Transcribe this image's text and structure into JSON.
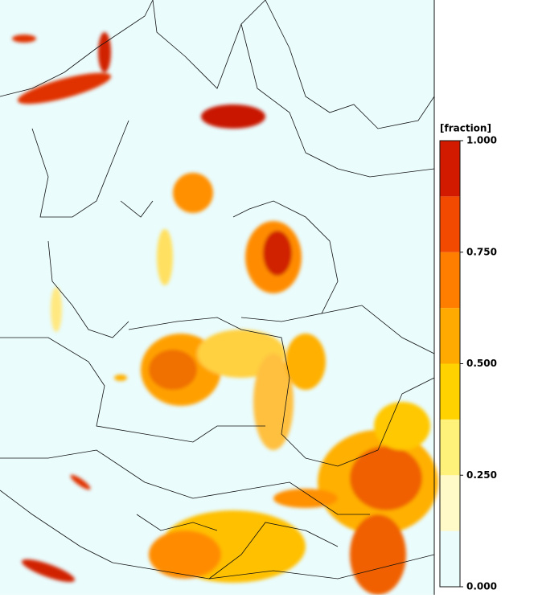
{
  "colorbar": {
    "label": "[fraction]",
    "ticks": [
      {
        "value": 0,
        "label": "0.000"
      },
      {
        "value": 0.25,
        "label": "0.250"
      },
      {
        "value": 0.5,
        "label": "0.500"
      },
      {
        "value": 0.75,
        "label": "0.750"
      },
      {
        "value": 1,
        "label": "1.000"
      }
    ],
    "colors": [
      "#eafcfc",
      "#fffac8",
      "#fff27a",
      "#ffd200",
      "#ffaa00",
      "#ff7e00",
      "#f24a00",
      "#d21a00"
    ]
  }
}
